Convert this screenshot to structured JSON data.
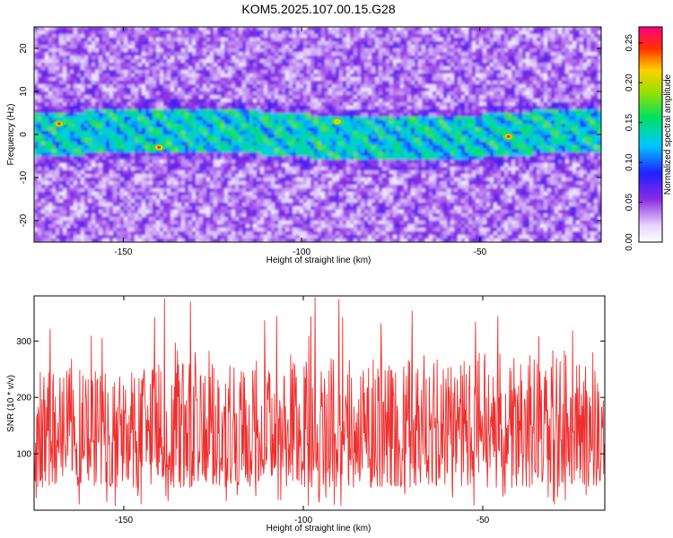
{
  "figure": {
    "title": "KOM5.2025.107.00.15.G28"
  },
  "chart_data": [
    {
      "type": "heatmap",
      "xlabel": "Height of straight line (km)",
      "ylabel": "Frequency (Hz)",
      "xlim": [
        -175,
        -16
      ],
      "ylim": [
        -25,
        25
      ],
      "x_ticks": [
        -150,
        -100,
        -50
      ],
      "y_ticks": [
        -20,
        -10,
        0,
        10,
        20
      ],
      "colorbar": {
        "label": "Normalized spectral amplitude",
        "range": [
          0,
          0.27
        ],
        "ticks": [
          0.0,
          0.05,
          0.1,
          0.15,
          0.2,
          0.25
        ],
        "tick_labels": [
          "0.00",
          "0.05",
          "0.10",
          "0.15",
          "0.20",
          "0.25"
        ],
        "colormap": "rainbow (white-violet-blue-cyan-green-yellow-red-magenta)"
      },
      "signal_band_hz": [
        -5,
        5
      ],
      "peaks": [
        {
          "x": -168,
          "y": 2.5,
          "value": 0.25
        },
        {
          "x": -140,
          "y": -3.0,
          "value": 0.25
        },
        {
          "x": -90,
          "y": 3.0,
          "value": 0.2
        },
        {
          "x": -42,
          "y": -0.5,
          "value": 0.25
        }
      ],
      "grid": false
    },
    {
      "type": "line",
      "xlabel": "Height of straight line (km)",
      "ylabel": "SNR (10 * v/v)",
      "xlim": [
        -175,
        -16
      ],
      "ylim": [
        0,
        380
      ],
      "x_ticks": [
        -150,
        -100,
        -50
      ],
      "y_ticks": [
        100,
        200,
        300
      ],
      "series_color": "#ee3030",
      "typical_range": [
        40,
        250
      ],
      "peak_value": 380,
      "grid": false
    }
  ]
}
